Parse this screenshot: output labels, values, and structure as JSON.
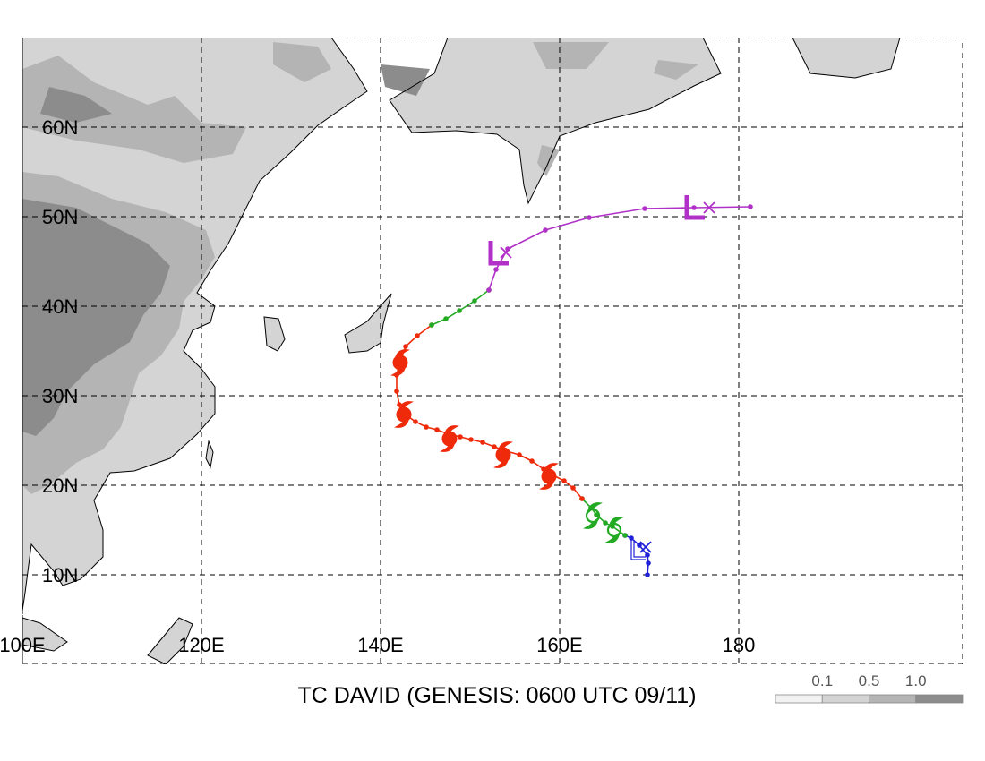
{
  "title": "TC DAVID (GENESIS: 0600 UTC 09/11)",
  "map": {
    "lon_range": [
      100,
      205
    ],
    "lat_range": [
      0,
      70
    ],
    "lon_ticks": [
      {
        "value": 100,
        "label": "100E"
      },
      {
        "value": 120,
        "label": "120E"
      },
      {
        "value": 140,
        "label": "140E"
      },
      {
        "value": 160,
        "label": "160E"
      },
      {
        "value": 180,
        "label": "180"
      }
    ],
    "lat_ticks": [
      {
        "value": 10,
        "label": "10N"
      },
      {
        "value": 20,
        "label": "20N"
      },
      {
        "value": 30,
        "label": "30N"
      },
      {
        "value": 40,
        "label": "40N"
      },
      {
        "value": 50,
        "label": "50N"
      },
      {
        "value": 60,
        "label": "60N"
      }
    ],
    "grid": "dashed"
  },
  "legend": {
    "labels": [
      "0.1",
      "0.5",
      "1.0"
    ],
    "shades": [
      "#f2f2f2",
      "#d4d4d4",
      "#b4b4b4",
      "#8c8c8c"
    ]
  },
  "track_colors": {
    "depression": "#2020d8",
    "storm": "#22aa22",
    "typhoon": "#ee2a0a",
    "extratropical": "#b030c8"
  },
  "track": {
    "segments": [
      {
        "stage": "depression",
        "points": [
          [
            169.8,
            10.0
          ],
          [
            169.9,
            11.3
          ],
          [
            169.8,
            12.2
          ],
          [
            168.9,
            13.3
          ],
          [
            168.0,
            14.1
          ],
          [
            167.3,
            14.4
          ]
        ]
      },
      {
        "stage": "storm",
        "points": [
          [
            167.3,
            14.4
          ],
          [
            165.9,
            15.4
          ],
          [
            165.1,
            15.8
          ],
          [
            164.1,
            16.7
          ],
          [
            163.5,
            17.5
          ],
          [
            162.5,
            18.5
          ]
        ]
      },
      {
        "stage": "typhoon",
        "points": [
          [
            162.5,
            18.5
          ],
          [
            161.5,
            19.7
          ],
          [
            160.5,
            20.5
          ],
          [
            159.3,
            21.1
          ],
          [
            158.2,
            21.8
          ],
          [
            156.9,
            22.7
          ],
          [
            155.5,
            23.4
          ],
          [
            154.1,
            23.8
          ],
          [
            152.7,
            24.3
          ],
          [
            151.4,
            24.8
          ],
          [
            150.1,
            25.1
          ],
          [
            148.9,
            25.4
          ],
          [
            147.6,
            25.7
          ],
          [
            146.3,
            26.2
          ],
          [
            145.1,
            26.5
          ],
          [
            143.9,
            27.1
          ],
          [
            142.9,
            27.8
          ],
          [
            142.1,
            29.0
          ],
          [
            141.8,
            30.5
          ],
          [
            141.8,
            32.3
          ],
          [
            142.1,
            33.6
          ],
          [
            142.8,
            35.5
          ],
          [
            144.1,
            36.7
          ],
          [
            145.7,
            37.9
          ]
        ]
      },
      {
        "stage": "storm",
        "points": [
          [
            145.7,
            37.9
          ],
          [
            147.3,
            38.6
          ],
          [
            148.8,
            39.5
          ],
          [
            150.5,
            40.6
          ],
          [
            152.1,
            41.8
          ]
        ]
      },
      {
        "stage": "extratropical",
        "points": [
          [
            152.1,
            41.8
          ],
          [
            152.9,
            44.1
          ],
          [
            154.2,
            46.4
          ],
          [
            158.4,
            48.5
          ],
          [
            163.3,
            49.9
          ],
          [
            169.5,
            50.9
          ],
          [
            175.0,
            51.0
          ],
          [
            181.3,
            51.1
          ]
        ]
      }
    ],
    "markers": [
      {
        "type": "depression",
        "lon": 168.6,
        "lat": 12.7
      },
      {
        "type": "storm",
        "lon": 166.1,
        "lat": 15.0
      },
      {
        "type": "storm",
        "lon": 163.7,
        "lat": 16.6
      },
      {
        "type": "typhoon",
        "lon": 158.8,
        "lat": 21.0
      },
      {
        "type": "typhoon",
        "lon": 153.7,
        "lat": 23.4
      },
      {
        "type": "typhoon",
        "lon": 147.7,
        "lat": 25.2
      },
      {
        "type": "typhoon",
        "lon": 142.6,
        "lat": 27.9
      },
      {
        "type": "typhoon",
        "lon": 142.2,
        "lat": 33.7
      },
      {
        "type": "low",
        "lon": 153.2,
        "lat": 45.9
      },
      {
        "type": "low",
        "lon": 175.1,
        "lat": 51.0
      }
    ],
    "x_marks": [
      {
        "color": "#2020d8",
        "lon": 169.6,
        "lat": 13.1
      },
      {
        "color": "#b030c8",
        "lon": 154.0,
        "lat": 46.0
      },
      {
        "color": "#b030c8",
        "lon": 176.7,
        "lat": 51.0
      }
    ]
  },
  "shading": {
    "description_free": true,
    "level_polys": [
      {
        "level": 1,
        "pts": [
          [
            100,
            70
          ],
          [
            134.5,
            70
          ],
          [
            137.0,
            66.5
          ],
          [
            138.5,
            64.0
          ],
          [
            136.0,
            62.3
          ],
          [
            133.0,
            60.2
          ],
          [
            130.0,
            57.2
          ],
          [
            126.5,
            54.0
          ],
          [
            124.5,
            50.0
          ],
          [
            123.0,
            47.0
          ],
          [
            121.0,
            44.0
          ],
          [
            119.5,
            41.5
          ],
          [
            121.5,
            40.0
          ],
          [
            121.0,
            38.2
          ],
          [
            119.0,
            37.3
          ],
          [
            118.0,
            35.0
          ],
          [
            120.0,
            33.0
          ],
          [
            121.5,
            31.0
          ],
          [
            121.5,
            28.0
          ],
          [
            119.5,
            25.7
          ],
          [
            116.5,
            23.0
          ],
          [
            112.5,
            21.6
          ],
          [
            109.8,
            21.4
          ],
          [
            108.0,
            18.3
          ],
          [
            109.0,
            15.0
          ],
          [
            109.0,
            12.0
          ],
          [
            106.5,
            9.5
          ],
          [
            104.5,
            8.8
          ],
          [
            103.5,
            10.4
          ],
          [
            101.0,
            13.4
          ],
          [
            100.3,
            8.0
          ],
          [
            100,
            6.0
          ]
        ]
      },
      {
        "level": 1,
        "pts": [
          [
            147.5,
            70
          ],
          [
            176.0,
            70
          ],
          [
            178.0,
            66.0
          ],
          [
            175.0,
            64.6
          ],
          [
            170.0,
            62.0
          ],
          [
            164.0,
            60.5
          ],
          [
            160.0,
            59.0
          ],
          [
            158.5,
            55.5
          ],
          [
            156.5,
            51.5
          ],
          [
            156.0,
            53.5
          ],
          [
            155.5,
            57.5
          ],
          [
            153.0,
            59.2
          ],
          [
            148.5,
            59.6
          ],
          [
            143.5,
            59.4
          ],
          [
            141.0,
            63.0
          ],
          [
            146.0,
            66.0
          ]
        ]
      },
      {
        "level": 1,
        "pts": [
          [
            186.0,
            70
          ],
          [
            198.0,
            70
          ],
          [
            197.0,
            66.5
          ],
          [
            193.0,
            65.5
          ],
          [
            188.0,
            66.0
          ]
        ]
      },
      {
        "level": 1,
        "pts": [
          [
            141.2,
            41.4
          ],
          [
            140.3,
            38.0
          ],
          [
            140.0,
            35.9
          ],
          [
            138.5,
            35.0
          ],
          [
            136.5,
            34.8
          ],
          [
            136.0,
            36.8
          ],
          [
            138.5,
            38.3
          ]
        ]
      },
      {
        "level": 1,
        "pts": [
          [
            127.0,
            38.8
          ],
          [
            128.6,
            38.6
          ],
          [
            129.3,
            36.3
          ],
          [
            128.5,
            35.0
          ],
          [
            127.3,
            35.6
          ]
        ]
      },
      {
        "level": 1,
        "pts": [
          [
            120.8,
            24.9
          ],
          [
            121.3,
            23.7
          ],
          [
            121.0,
            22.0
          ],
          [
            120.5,
            23.0
          ]
        ]
      },
      {
        "level": 1,
        "pts": [
          [
            100,
            2.2
          ],
          [
            103.5,
            1.5
          ],
          [
            105.0,
            2.5
          ],
          [
            102.0,
            4.6
          ],
          [
            100,
            5.2
          ]
        ]
      },
      {
        "level": 1,
        "pts": [
          [
            114.0,
            1.0
          ],
          [
            117.5,
            5.2
          ],
          [
            119.0,
            4.5
          ],
          [
            118.0,
            2.0
          ],
          [
            116.0,
            0
          ]
        ]
      },
      {
        "level": 2,
        "pts": [
          [
            100,
            66.5
          ],
          [
            104.0,
            68.0
          ],
          [
            108.0,
            65.0
          ],
          [
            114.0,
            62.5
          ],
          [
            117.0,
            63.5
          ],
          [
            120.0,
            60.5
          ],
          [
            125.0,
            60.0
          ],
          [
            123.5,
            57.0
          ],
          [
            118.0,
            56.0
          ],
          [
            113.0,
            57.5
          ],
          [
            106.0,
            58.5
          ],
          [
            100,
            60.0
          ]
        ]
      },
      {
        "level": 2,
        "pts": [
          [
            100,
            55.0
          ],
          [
            104.0,
            54.5
          ],
          [
            110.0,
            52.0
          ],
          [
            116.0,
            50.5
          ],
          [
            120.5,
            48.5
          ],
          [
            121.5,
            45.5
          ],
          [
            120.0,
            43.0
          ],
          [
            118.0,
            40.5
          ],
          [
            117.5,
            37.5
          ],
          [
            115.5,
            34.5
          ],
          [
            113.0,
            32.5
          ],
          [
            112.0,
            29.5
          ],
          [
            111.0,
            26.5
          ],
          [
            109.0,
            24.0
          ],
          [
            106.0,
            22.5
          ],
          [
            103.0,
            20.0
          ],
          [
            101.0,
            19.0
          ],
          [
            100,
            20.0
          ]
        ]
      },
      {
        "level": 2,
        "pts": [
          [
            128.0,
            69.5
          ],
          [
            133.0,
            69.0
          ],
          [
            134.5,
            66.5
          ],
          [
            131.5,
            65.0
          ],
          [
            128.0,
            67.0
          ]
        ]
      },
      {
        "level": 2,
        "pts": [
          [
            157.0,
            69.5
          ],
          [
            165.5,
            69.5
          ],
          [
            163.0,
            66.5
          ],
          [
            158.5,
            66.5
          ]
        ]
      },
      {
        "level": 2,
        "pts": [
          [
            171.0,
            67.5
          ],
          [
            175.5,
            67.0
          ],
          [
            173.0,
            65.3
          ],
          [
            170.5,
            66.0
          ]
        ]
      },
      {
        "level": 2,
        "pts": [
          [
            158.0,
            58.0
          ],
          [
            160.0,
            57.5
          ],
          [
            158.5,
            54.5
          ],
          [
            157.5,
            56.0
          ]
        ]
      },
      {
        "level": 3,
        "pts": [
          [
            100,
            52.0
          ],
          [
            106.0,
            51.0
          ],
          [
            110.0,
            49.0
          ],
          [
            114.0,
            47.0
          ],
          [
            116.5,
            44.5
          ],
          [
            115.5,
            41.5
          ],
          [
            113.5,
            39.0
          ],
          [
            112.0,
            36.0
          ],
          [
            108.0,
            33.5
          ],
          [
            105.0,
            30.5
          ],
          [
            103.5,
            27.5
          ],
          [
            101.5,
            25.5
          ],
          [
            100,
            26.0
          ]
        ]
      },
      {
        "level": 3,
        "pts": [
          [
            103.0,
            64.5
          ],
          [
            107.0,
            63.5
          ],
          [
            110.0,
            61.5
          ],
          [
            106.0,
            60.5
          ],
          [
            102.0,
            61.5
          ]
        ]
      },
      {
        "level": 3,
        "pts": [
          [
            140.0,
            67.0
          ],
          [
            145.5,
            66.5
          ],
          [
            144.0,
            63.5
          ],
          [
            140.5,
            64.5
          ]
        ]
      }
    ]
  }
}
